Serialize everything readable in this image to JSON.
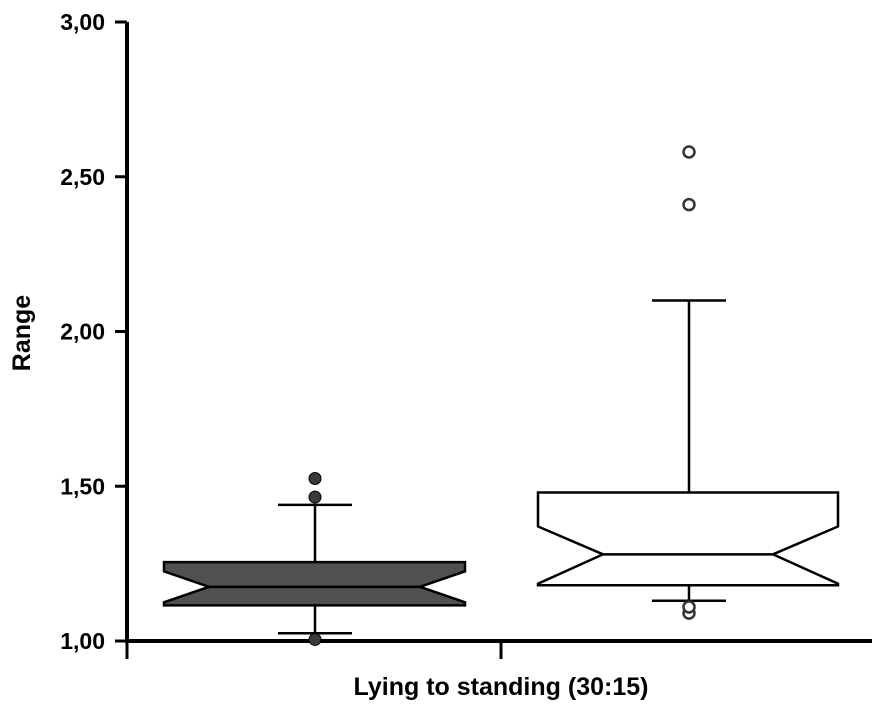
{
  "chart_data": {
    "type": "boxplot",
    "xlabel": "Lying to standing (30:15)",
    "ylabel": "Range",
    "ylim": [
      1.0,
      3.0
    ],
    "yticks": [
      "1,00",
      "1,50",
      "2,00",
      "2,50",
      "3,00"
    ],
    "ytick_values": [
      1.0,
      1.5,
      2.0,
      2.5,
      3.0
    ],
    "notched": true,
    "boxes": [
      {
        "fill": "#505050",
        "whisker_low": 1.025,
        "q1": 1.115,
        "median": 1.175,
        "q3": 1.255,
        "whisker_high": 1.44,
        "notch_low": 1.125,
        "notch_high": 1.225,
        "outliers": [
          1.005,
          1.465,
          1.525
        ],
        "outlier_style": "filled"
      },
      {
        "fill": "#ffffff",
        "whisker_low": 1.13,
        "q1": 1.18,
        "median": 1.28,
        "q3": 1.48,
        "whisker_high": 2.1,
        "notch_low": 1.185,
        "notch_high": 1.37,
        "outliers": [
          1.09,
          1.11,
          2.41,
          2.58
        ],
        "outlier_style": "open"
      }
    ],
    "grid": false,
    "legend": "none"
  }
}
